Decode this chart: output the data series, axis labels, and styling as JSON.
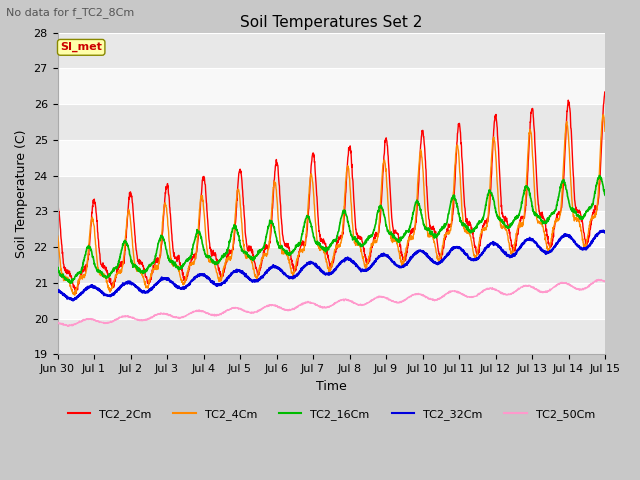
{
  "title": "Soil Temperatures Set 2",
  "xlabel": "Time",
  "ylabel": "Soil Temperature (C)",
  "ylim": [
    19.0,
    28.0
  ],
  "yticks": [
    19.0,
    20.0,
    21.0,
    22.0,
    23.0,
    24.0,
    25.0,
    26.0,
    27.0,
    28.0
  ],
  "xtick_labels": [
    "Jun 30",
    "Jul 1",
    "Jul 2",
    "Jul 3",
    "Jul 4",
    "Jul 5",
    "Jul 6",
    "Jul 7",
    "Jul 8",
    "Jul 9",
    "Jul 10",
    "Jul 11",
    "Jul 12",
    "Jul 13",
    "Jul 14",
    "Jul 15"
  ],
  "no_data_text": "No data for f_TC2_8Cm",
  "annotation_text": "SI_met",
  "line_colors": [
    "#ff0000",
    "#ff8800",
    "#00bb00",
    "#0000dd",
    "#ff99cc"
  ],
  "line_labels": [
    "TC2_2Cm",
    "TC2_4Cm",
    "TC2_16Cm",
    "TC2_32Cm",
    "TC2_50Cm"
  ],
  "line_widths": [
    1.0,
    1.0,
    1.2,
    1.5,
    1.0
  ],
  "plot_bg_color": "#f0f0f0",
  "grid_color": "#ffffff",
  "title_fontsize": 11,
  "axis_fontsize": 9,
  "tick_fontsize": 8
}
